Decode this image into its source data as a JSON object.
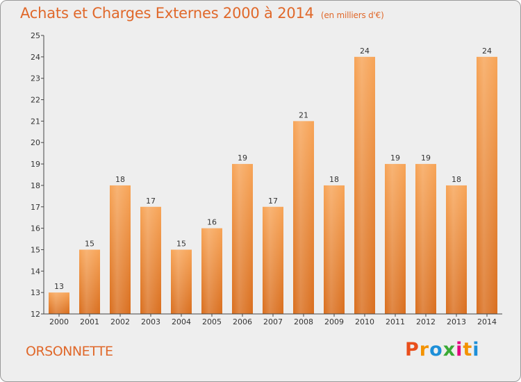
{
  "header": {
    "title": "Achats et Charges Externes 2000 à 2014",
    "subtitle": "(en milliers d'€)"
  },
  "footer": {
    "commune": "ORSONNETTE",
    "brand": "Proxiti"
  },
  "colors": {
    "accent": "#e0682a",
    "bar_top": "#f7a457",
    "bar_bottom": "#d96e1e",
    "background": "#eeeeee",
    "brand_letters": [
      "#e94e1b",
      "#f39200",
      "#1d8fd8",
      "#3aaa35",
      "#e3007e",
      "#f39200",
      "#1d8fd8"
    ]
  },
  "chart_data": {
    "type": "bar",
    "title": "Achats et Charges Externes 2000 à 2014",
    "subtitle": "(en milliers d'€)",
    "xlabel": "",
    "ylabel": "",
    "categories": [
      "2000",
      "2001",
      "2002",
      "2003",
      "2004",
      "2005",
      "2006",
      "2007",
      "2008",
      "2009",
      "2010",
      "2011",
      "2012",
      "2013",
      "2014"
    ],
    "values": [
      13,
      15,
      18,
      17,
      15,
      16,
      19,
      17,
      21,
      18,
      24,
      19,
      19,
      18,
      24
    ],
    "data_labels": [
      "13",
      "15",
      "18",
      "17",
      "15",
      "16",
      "19",
      "17",
      "21",
      "18",
      "24",
      "19",
      "19",
      "18",
      "24"
    ],
    "ylim": [
      12,
      25
    ],
    "yticks": [
      "12",
      "13",
      "14",
      "15",
      "16",
      "17",
      "18",
      "19",
      "20",
      "21",
      "22",
      "23",
      "24",
      "25"
    ],
    "grid": false,
    "legend": "none"
  }
}
